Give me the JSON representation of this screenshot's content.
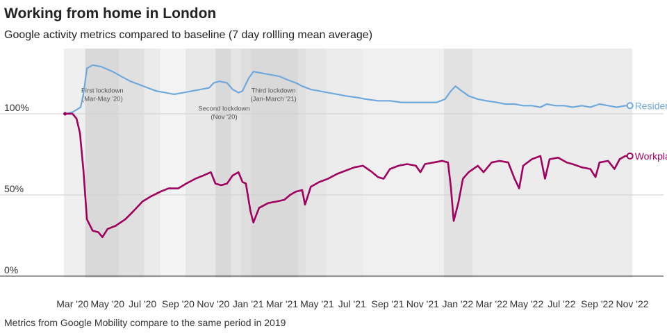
{
  "title": "Working from home in London",
  "subtitle": "Google activity metrics compared to baseline (7 day rollling mean average)",
  "footer": "Metrics from Google Mobility compare to the same period in 2019",
  "chart_data": {
    "type": "line",
    "x_start": "2020-02-15",
    "x_end": "2022-11-01",
    "ylim": [
      0,
      140
    ],
    "y_ticks": [
      {
        "value": 0,
        "label": "0%"
      },
      {
        "value": 50,
        "label": "50%"
      },
      {
        "value": 100,
        "label": "100%"
      }
    ],
    "x_ticks": [
      {
        "date": "2020-03-01",
        "label": "Mar '20"
      },
      {
        "date": "2020-05-01",
        "label": "May '20"
      },
      {
        "date": "2020-07-01",
        "label": "Jul '20"
      },
      {
        "date": "2020-09-01",
        "label": "Sep '20"
      },
      {
        "date": "2020-11-01",
        "label": "Nov '20"
      },
      {
        "date": "2021-01-01",
        "label": "Jan '21"
      },
      {
        "date": "2021-03-01",
        "label": "Mar '21"
      },
      {
        "date": "2021-05-01",
        "label": "May '21"
      },
      {
        "date": "2021-07-01",
        "label": "Jul '21"
      },
      {
        "date": "2021-09-01",
        "label": "Sep '21"
      },
      {
        "date": "2021-11-01",
        "label": "Nov '21"
      },
      {
        "date": "2022-01-01",
        "label": "Jan '22"
      },
      {
        "date": "2022-03-01",
        "label": "Mar '22"
      },
      {
        "date": "2022-05-01",
        "label": "May '22"
      },
      {
        "date": "2022-07-01",
        "label": "Jul '22"
      },
      {
        "date": "2022-09-01",
        "label": "Sep '22"
      },
      {
        "date": "2022-11-01",
        "label": "Nov '22"
      }
    ],
    "bands": [
      {
        "from": "2020-03-23",
        "to": "2020-05-20",
        "shade": "#d9d9d9"
      },
      {
        "from": "2020-05-20",
        "to": "2020-07-04",
        "shade": "#e0e0e0"
      },
      {
        "from": "2020-07-04",
        "to": "2020-08-01",
        "shade": "#ebebeb"
      },
      {
        "from": "2020-08-01",
        "to": "2020-09-14",
        "shade": "#f3f3f3"
      },
      {
        "from": "2020-09-14",
        "to": "2020-11-05",
        "shade": "#e8e8e8"
      },
      {
        "from": "2020-11-05",
        "to": "2020-12-02",
        "shade": "#d9d9d9"
      },
      {
        "from": "2020-12-02",
        "to": "2020-12-20",
        "shade": "#e4e4e4"
      },
      {
        "from": "2020-12-20",
        "to": "2021-01-06",
        "shade": "#dedede"
      },
      {
        "from": "2021-01-06",
        "to": "2021-03-29",
        "shade": "#d9d9d9"
      },
      {
        "from": "2021-03-29",
        "to": "2021-04-12",
        "shade": "#e0e0e0"
      },
      {
        "from": "2021-04-12",
        "to": "2021-05-17",
        "shade": "#e6e6e6"
      },
      {
        "from": "2021-05-17",
        "to": "2021-07-19",
        "shade": "#ececec"
      },
      {
        "from": "2021-07-19",
        "to": "2021-12-08",
        "shade": "#f0f0f0"
      },
      {
        "from": "2021-12-08",
        "to": "2022-01-27",
        "shade": "#e2e2e2"
      },
      {
        "from": "2022-01-27",
        "to": "2022-11-01",
        "shade": "#ececec"
      }
    ],
    "annotations": [
      {
        "lines": [
          "First lockdown",
          "(Mar-May '20)"
        ],
        "date": "2020-04-22",
        "y": 113
      },
      {
        "lines": [
          "Second lockdown",
          "(Nov '20)"
        ],
        "date": "2020-11-20",
        "y": 102
      },
      {
        "lines": [
          "Third lockdown",
          "(Jan-March '21)"
        ],
        "date": "2021-02-14",
        "y": 113
      }
    ],
    "series": [
      {
        "name": "Residential",
        "color": "#6fa8dc",
        "points": [
          [
            "2020-02-17",
            100
          ],
          [
            "2020-03-01",
            101
          ],
          [
            "2020-03-15",
            104
          ],
          [
            "2020-03-20",
            112
          ],
          [
            "2020-03-26",
            128
          ],
          [
            "2020-04-05",
            130
          ],
          [
            "2020-04-20",
            129
          ],
          [
            "2020-05-10",
            126
          ],
          [
            "2020-05-25",
            123
          ],
          [
            "2020-06-10",
            120
          ],
          [
            "2020-06-25",
            118
          ],
          [
            "2020-07-10",
            116
          ],
          [
            "2020-07-25",
            114
          ],
          [
            "2020-08-10",
            113
          ],
          [
            "2020-08-25",
            112
          ],
          [
            "2020-09-10",
            113
          ],
          [
            "2020-09-25",
            114
          ],
          [
            "2020-10-10",
            115
          ],
          [
            "2020-10-25",
            116
          ],
          [
            "2020-11-02",
            119
          ],
          [
            "2020-11-12",
            120
          ],
          [
            "2020-11-25",
            119
          ],
          [
            "2020-12-05",
            115
          ],
          [
            "2020-12-15",
            113
          ],
          [
            "2020-12-22",
            114
          ],
          [
            "2021-01-02",
            122
          ],
          [
            "2021-01-10",
            126
          ],
          [
            "2021-01-25",
            125
          ],
          [
            "2021-02-10",
            124
          ],
          [
            "2021-02-25",
            123
          ],
          [
            "2021-03-10",
            121
          ],
          [
            "2021-03-25",
            119
          ],
          [
            "2021-04-05",
            117
          ],
          [
            "2021-04-20",
            115
          ],
          [
            "2021-05-05",
            114
          ],
          [
            "2021-05-20",
            113
          ],
          [
            "2021-06-05",
            112
          ],
          [
            "2021-06-20",
            111
          ],
          [
            "2021-07-10",
            110
          ],
          [
            "2021-07-25",
            109
          ],
          [
            "2021-08-15",
            108
          ],
          [
            "2021-09-05",
            108
          ],
          [
            "2021-09-25",
            107
          ],
          [
            "2021-10-15",
            107
          ],
          [
            "2021-11-05",
            107
          ],
          [
            "2021-11-25",
            107
          ],
          [
            "2021-12-10",
            109
          ],
          [
            "2021-12-20",
            114
          ],
          [
            "2021-12-28",
            117
          ],
          [
            "2022-01-08",
            114
          ],
          [
            "2022-01-20",
            111
          ],
          [
            "2022-02-05",
            109
          ],
          [
            "2022-02-20",
            108
          ],
          [
            "2022-03-10",
            107
          ],
          [
            "2022-03-25",
            106
          ],
          [
            "2022-04-10",
            106
          ],
          [
            "2022-04-25",
            105
          ],
          [
            "2022-05-10",
            105
          ],
          [
            "2022-05-25",
            104
          ],
          [
            "2022-06-05",
            106
          ],
          [
            "2022-06-20",
            105
          ],
          [
            "2022-07-05",
            105
          ],
          [
            "2022-07-20",
            104
          ],
          [
            "2022-08-05",
            105
          ],
          [
            "2022-08-20",
            104
          ],
          [
            "2022-09-05",
            106
          ],
          [
            "2022-09-20",
            105
          ],
          [
            "2022-10-05",
            104
          ],
          [
            "2022-10-20",
            105
          ],
          [
            "2022-10-28",
            105
          ]
        ]
      },
      {
        "name": "Workplaces",
        "color": "#a0005f",
        "points": [
          [
            "2020-02-17",
            100
          ],
          [
            "2020-03-01",
            100
          ],
          [
            "2020-03-08",
            97
          ],
          [
            "2020-03-14",
            88
          ],
          [
            "2020-03-20",
            65
          ],
          [
            "2020-03-26",
            35
          ],
          [
            "2020-04-05",
            28
          ],
          [
            "2020-04-15",
            27
          ],
          [
            "2020-04-22",
            24
          ],
          [
            "2020-05-01",
            29
          ],
          [
            "2020-05-15",
            31
          ],
          [
            "2020-06-01",
            35
          ],
          [
            "2020-06-15",
            40
          ],
          [
            "2020-07-01",
            46
          ],
          [
            "2020-07-15",
            49
          ],
          [
            "2020-08-01",
            52
          ],
          [
            "2020-08-15",
            54
          ],
          [
            "2020-09-01",
            54
          ],
          [
            "2020-09-15",
            57
          ],
          [
            "2020-10-01",
            60
          ],
          [
            "2020-10-15",
            62
          ],
          [
            "2020-10-28",
            64
          ],
          [
            "2020-11-05",
            57
          ],
          [
            "2020-11-15",
            56
          ],
          [
            "2020-11-25",
            57
          ],
          [
            "2020-12-05",
            62
          ],
          [
            "2020-12-15",
            64
          ],
          [
            "2020-12-22",
            58
          ],
          [
            "2020-12-28",
            57
          ],
          [
            "2021-01-05",
            40
          ],
          [
            "2021-01-10",
            33
          ],
          [
            "2021-01-20",
            42
          ],
          [
            "2021-02-05",
            45
          ],
          [
            "2021-02-20",
            46
          ],
          [
            "2021-03-05",
            47
          ],
          [
            "2021-03-15",
            50
          ],
          [
            "2021-03-25",
            52
          ],
          [
            "2021-04-05",
            53
          ],
          [
            "2021-04-10",
            44
          ],
          [
            "2021-04-20",
            55
          ],
          [
            "2021-05-05",
            58
          ],
          [
            "2021-05-20",
            60
          ],
          [
            "2021-06-05",
            63
          ],
          [
            "2021-06-20",
            65
          ],
          [
            "2021-07-05",
            67
          ],
          [
            "2021-07-20",
            68
          ],
          [
            "2021-08-05",
            64
          ],
          [
            "2021-08-15",
            61
          ],
          [
            "2021-08-25",
            60
          ],
          [
            "2021-09-05",
            66
          ],
          [
            "2021-09-20",
            68
          ],
          [
            "2021-10-05",
            69
          ],
          [
            "2021-10-20",
            68
          ],
          [
            "2021-10-28",
            64
          ],
          [
            "2021-11-05",
            69
          ],
          [
            "2021-11-20",
            70
          ],
          [
            "2021-12-05",
            71
          ],
          [
            "2021-12-15",
            70
          ],
          [
            "2021-12-20",
            55
          ],
          [
            "2021-12-25",
            34
          ],
          [
            "2022-01-02",
            45
          ],
          [
            "2022-01-10",
            60
          ],
          [
            "2022-01-20",
            64
          ],
          [
            "2022-02-05",
            68
          ],
          [
            "2022-02-15",
            64
          ],
          [
            "2022-03-01",
            70
          ],
          [
            "2022-03-15",
            71
          ],
          [
            "2022-03-30",
            70
          ],
          [
            "2022-04-10",
            60
          ],
          [
            "2022-04-18",
            54
          ],
          [
            "2022-04-25",
            68
          ],
          [
            "2022-05-10",
            72
          ],
          [
            "2022-05-25",
            74
          ],
          [
            "2022-06-02",
            60
          ],
          [
            "2022-06-10",
            72
          ],
          [
            "2022-06-25",
            73
          ],
          [
            "2022-07-10",
            70
          ],
          [
            "2022-07-20",
            69
          ],
          [
            "2022-08-05",
            67
          ],
          [
            "2022-08-20",
            66
          ],
          [
            "2022-08-29",
            61
          ],
          [
            "2022-09-05",
            70
          ],
          [
            "2022-09-20",
            71
          ],
          [
            "2022-10-01",
            66
          ],
          [
            "2022-10-10",
            72
          ],
          [
            "2022-10-20",
            74
          ],
          [
            "2022-10-28",
            74
          ]
        ]
      }
    ]
  }
}
